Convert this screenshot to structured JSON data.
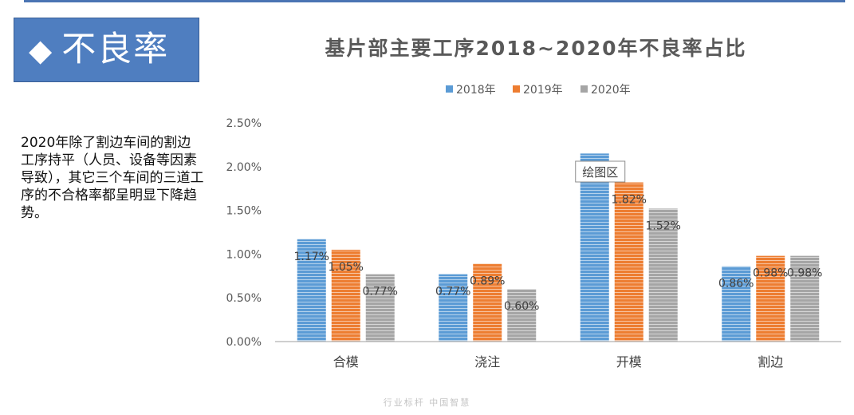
{
  "header": {
    "diamond_glyph": "◆",
    "title": "不良率"
  },
  "side_note": "2020年除了割边车间的割边工序持平（人员、设备等因素导致），其它三个车间的三道工序的不合格率都呈明显下降趋势。",
  "tooltip": "绘图区",
  "footer": "行业标杆  中国智慧",
  "chart_data": {
    "type": "bar",
    "title": "基片部主要工序2018~2020年不良率占比",
    "categories": [
      "合模",
      "浇注",
      "开模",
      "割边"
    ],
    "series": [
      {
        "name": "2018年",
        "color": "#5b9bd5",
        "values": [
          1.17,
          0.77,
          2.15,
          0.86
        ],
        "labels": [
          "1.17%",
          "0.77%",
          "",
          "0.86%"
        ]
      },
      {
        "name": "2019年",
        "color": "#ed7d31",
        "values": [
          1.05,
          0.89,
          1.82,
          0.98
        ],
        "labels": [
          "1.05%",
          "0.89%",
          "1.82%",
          "0.98%"
        ]
      },
      {
        "name": "2020年",
        "color": "#a5a5a5",
        "values": [
          0.77,
          0.6,
          1.52,
          0.98
        ],
        "labels": [
          "0.77%",
          "0.60%",
          "1.52%",
          "0.98%"
        ]
      }
    ],
    "yticks": [
      "0.00%",
      "0.50%",
      "1.00%",
      "1.50%",
      "2.00%",
      "2.50%"
    ],
    "ylim": [
      0,
      2.5
    ],
    "legend_position": "top",
    "grid": false
  }
}
